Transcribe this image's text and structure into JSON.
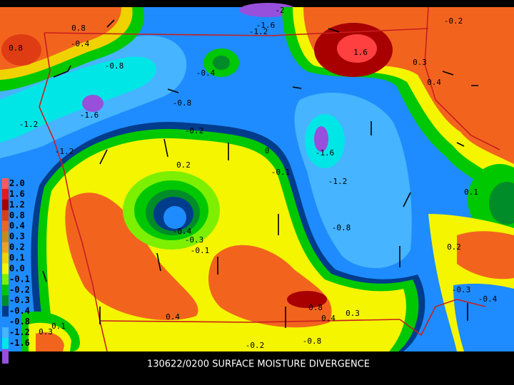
{
  "caption": "130622/0200 SURFACE MOISTURE DIVERGENCE",
  "colorbar": [
    {
      "label": "2.0",
      "color": "#ff5a5a"
    },
    {
      "label": "1.6",
      "color": "#e41a1a"
    },
    {
      "label": "1.2",
      "color": "#a80000"
    },
    {
      "label": "0.8",
      "color": "#e03c14"
    },
    {
      "label": "0.4",
      "color": "#f2641e"
    },
    {
      "label": "0.3",
      "color": "#c88c14"
    },
    {
      "label": "0.2",
      "color": "#f0a01e"
    },
    {
      "label": "0.1",
      "color": "#f0d200"
    },
    {
      "label": "0.0",
      "color": "#f5f500"
    },
    {
      "label": "-0.1",
      "color": "#7cf000"
    },
    {
      "label": "-0.2",
      "color": "#00c800"
    },
    {
      "label": "-0.3",
      "color": "#008c28"
    },
    {
      "label": "-0.4",
      "color": "#003c8c"
    },
    {
      "label": "-0.8",
      "color": "#1e8cff"
    },
    {
      "label": "-1.2",
      "color": "#46b4ff"
    },
    {
      "label": "-1.6",
      "color": "#00e6e6"
    }
  ],
  "contour_labels": [
    "0.8",
    "0.8",
    "-0.4",
    "-0.8",
    "-1.6",
    "-1.2",
    "-1.2",
    "-0.8",
    "-1.2",
    "-1.6",
    "-2",
    "-0.4",
    "1.6",
    "0.3",
    "0.4",
    "-0.2",
    "-1.6",
    "-1.2",
    "-0.8",
    "0.2",
    "-0.2",
    "0",
    "-0.1",
    "-0.4",
    "-0.3",
    "-0.1",
    "0.2",
    "0.1",
    "-0.3",
    "-0.4",
    "0.4",
    "0.8",
    "0.4",
    "0.3",
    "-0.8",
    "-0.2",
    "0.1",
    "0.3"
  ]
}
